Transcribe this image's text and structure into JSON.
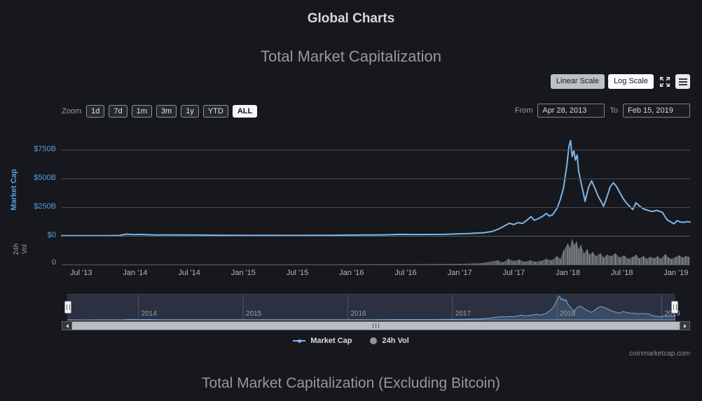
{
  "page": {
    "title": "Global Charts",
    "watermark": "coinmarketcap.com",
    "bottom_title": "Total Market Capitalization (Excluding Bitcoin)"
  },
  "toolbar": {
    "linear_scale_label": "Linear Scale",
    "log_scale_label": "Log Scale"
  },
  "range_controls": {
    "zoom_label": "Zoom",
    "zoom_options": [
      "1d",
      "7d",
      "1m",
      "3m",
      "1y",
      "YTD",
      "ALL"
    ],
    "active_zoom": "ALL",
    "from_label": "From",
    "from_value": "Apr 28, 2013",
    "to_label": "To",
    "to_value": "Feb 15, 2019"
  },
  "legend": {
    "items": [
      {
        "label": "Market Cap",
        "marker": "line",
        "color": "#7cb5ec"
      },
      {
        "label": "24h Vol",
        "marker": "circle",
        "color": "#909399"
      }
    ]
  },
  "chart_data": {
    "type": "line",
    "title": "Total Market Capitalization",
    "x_range": [
      2013.32,
      2019.13
    ],
    "x_ticks": [
      [
        "Jul '13",
        2013.5
      ],
      [
        "Jan '14",
        2014
      ],
      [
        "Jul '14",
        2014.5
      ],
      [
        "Jan '15",
        2015
      ],
      [
        "Jul '15",
        2015.5
      ],
      [
        "Jan '16",
        2016
      ],
      [
        "Jul '16",
        2016.5
      ],
      [
        "Jan '17",
        2017
      ],
      [
        "Jul '17",
        2017.5
      ],
      [
        "Jan '18",
        2018
      ],
      [
        "Jul '18",
        2018.5
      ],
      [
        "Jan '19",
        2019
      ]
    ],
    "y_axis": {
      "title": "Market Cap",
      "tick_labels": [
        "$0",
        "$250B",
        "$500B",
        "$750B"
      ],
      "tick_values": [
        0,
        250,
        500,
        750
      ],
      "max": 830,
      "unit": "billions USD"
    },
    "volume_axis": {
      "title": "24h Vol",
      "tick_labels": [
        "0"
      ],
      "max": 40,
      "unit": "billions USD"
    },
    "navigator_years": [
      2014,
      2015,
      2016,
      2017,
      2018,
      2019
    ],
    "series": [
      {
        "name": "Market Cap",
        "color": "#7cb5ec",
        "points": [
          [
            2013.32,
            1.6
          ],
          [
            2013.45,
            1.2
          ],
          [
            2013.6,
            1.4
          ],
          [
            2013.75,
            1.8
          ],
          [
            2013.85,
            3
          ],
          [
            2013.92,
            15
          ],
          [
            2013.96,
            12
          ],
          [
            2014,
            10.5
          ],
          [
            2014.05,
            13
          ],
          [
            2014.1,
            11
          ],
          [
            2014.2,
            8
          ],
          [
            2014.3,
            8.5
          ],
          [
            2014.45,
            7.5
          ],
          [
            2014.6,
            6.5
          ],
          [
            2014.75,
            5.5
          ],
          [
            2014.9,
            5
          ],
          [
            2015,
            4.3
          ],
          [
            2015.08,
            3.4
          ],
          [
            2015.2,
            4
          ],
          [
            2015.35,
            3.8
          ],
          [
            2015.5,
            3.9
          ],
          [
            2015.65,
            4.2
          ],
          [
            2015.8,
            4.5
          ],
          [
            2015.92,
            6
          ],
          [
            2016,
            7
          ],
          [
            2016.1,
            7.5
          ],
          [
            2016.2,
            8
          ],
          [
            2016.35,
            9.5
          ],
          [
            2016.45,
            12.5
          ],
          [
            2016.55,
            11.8
          ],
          [
            2016.7,
            12.2
          ],
          [
            2016.85,
            13
          ],
          [
            2017,
            18
          ],
          [
            2017.08,
            20
          ],
          [
            2017.15,
            24
          ],
          [
            2017.22,
            27
          ],
          [
            2017.3,
            38
          ],
          [
            2017.36,
            60
          ],
          [
            2017.42,
            90
          ],
          [
            2017.46,
            110
          ],
          [
            2017.5,
            98
          ],
          [
            2017.54,
            115
          ],
          [
            2017.58,
            108
          ],
          [
            2017.62,
            135
          ],
          [
            2017.66,
            168
          ],
          [
            2017.69,
            135
          ],
          [
            2017.73,
            152
          ],
          [
            2017.77,
            172
          ],
          [
            2017.8,
            195
          ],
          [
            2017.83,
            172
          ],
          [
            2017.86,
            185
          ],
          [
            2017.9,
            240
          ],
          [
            2017.93,
            315
          ],
          [
            2017.96,
            420
          ],
          [
            2017.99,
            610
          ],
          [
            2018.01,
            780
          ],
          [
            2018.025,
            830
          ],
          [
            2018.04,
            690
          ],
          [
            2018.055,
            745
          ],
          [
            2018.07,
            660
          ],
          [
            2018.085,
            705
          ],
          [
            2018.1,
            560
          ],
          [
            2018.12,
            470
          ],
          [
            2018.14,
            385
          ],
          [
            2018.16,
            300
          ],
          [
            2018.19,
            420
          ],
          [
            2018.22,
            480
          ],
          [
            2018.25,
            415
          ],
          [
            2018.28,
            345
          ],
          [
            2018.31,
            295
          ],
          [
            2018.33,
            258
          ],
          [
            2018.36,
            335
          ],
          [
            2018.39,
            425
          ],
          [
            2018.42,
            462
          ],
          [
            2018.45,
            430
          ],
          [
            2018.48,
            378
          ],
          [
            2018.51,
            326
          ],
          [
            2018.54,
            288
          ],
          [
            2018.57,
            258
          ],
          [
            2018.6,
            230
          ],
          [
            2018.63,
            288
          ],
          [
            2018.66,
            262
          ],
          [
            2018.7,
            235
          ],
          [
            2018.74,
            222
          ],
          [
            2018.78,
            212
          ],
          [
            2018.82,
            222
          ],
          [
            2018.85,
            212
          ],
          [
            2018.875,
            205
          ],
          [
            2018.895,
            172
          ],
          [
            2018.92,
            138
          ],
          [
            2018.95,
            122
          ],
          [
            2018.98,
            104
          ],
          [
            2019.01,
            132
          ],
          [
            2019.04,
            121
          ],
          [
            2019.07,
            117
          ],
          [
            2019.1,
            123
          ],
          [
            2019.13,
            121
          ]
        ]
      },
      {
        "name": "24h Vol",
        "color": "#8e9195",
        "points": [
          [
            2013.32,
            0
          ],
          [
            2016,
            0.3
          ],
          [
            2016.5,
            0.5
          ],
          [
            2017,
            1
          ],
          [
            2017.2,
            2
          ],
          [
            2017.35,
            6
          ],
          [
            2017.4,
            3
          ],
          [
            2017.45,
            8
          ],
          [
            2017.5,
            5
          ],
          [
            2017.55,
            7
          ],
          [
            2017.6,
            4
          ],
          [
            2017.65,
            6
          ],
          [
            2017.7,
            4
          ],
          [
            2017.75,
            5
          ],
          [
            2017.8,
            8
          ],
          [
            2017.85,
            6
          ],
          [
            2017.9,
            12
          ],
          [
            2017.93,
            8
          ],
          [
            2017.96,
            20
          ],
          [
            2018,
            30
          ],
          [
            2018.02,
            24
          ],
          [
            2018.04,
            36
          ],
          [
            2018.06,
            28
          ],
          [
            2018.08,
            33
          ],
          [
            2018.1,
            22
          ],
          [
            2018.12,
            28
          ],
          [
            2018.15,
            16
          ],
          [
            2018.18,
            22
          ],
          [
            2018.2,
            14
          ],
          [
            2018.23,
            18
          ],
          [
            2018.26,
            12
          ],
          [
            2018.3,
            16
          ],
          [
            2018.33,
            10
          ],
          [
            2018.36,
            14
          ],
          [
            2018.4,
            12
          ],
          [
            2018.44,
            16
          ],
          [
            2018.48,
            10
          ],
          [
            2018.52,
            13
          ],
          [
            2018.56,
            8
          ],
          [
            2018.6,
            11
          ],
          [
            2018.63,
            14
          ],
          [
            2018.66,
            9
          ],
          [
            2018.7,
            12
          ],
          [
            2018.73,
            8
          ],
          [
            2018.76,
            11
          ],
          [
            2018.8,
            9
          ],
          [
            2018.83,
            12
          ],
          [
            2018.86,
            8
          ],
          [
            2018.9,
            15
          ],
          [
            2018.93,
            10
          ],
          [
            2018.96,
            8
          ],
          [
            2019,
            11
          ],
          [
            2019.03,
            13
          ],
          [
            2019.06,
            10
          ],
          [
            2019.09,
            12
          ],
          [
            2019.12,
            11
          ]
        ]
      }
    ]
  }
}
